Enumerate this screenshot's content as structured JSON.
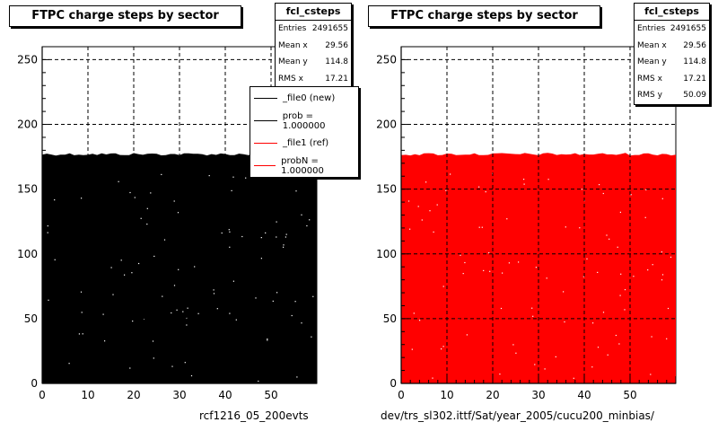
{
  "chart_data": [
    {
      "type": "scatter",
      "title": "FTPC charge steps by sector",
      "xlim": [
        0,
        60
      ],
      "ylim": [
        0,
        260
      ],
      "x_ticks": [
        0,
        10,
        20,
        30,
        40,
        50
      ],
      "y_ticks": [
        0,
        50,
        100,
        150,
        200,
        250
      ],
      "grid": true,
      "fill_region": {
        "x": [
          0,
          60
        ],
        "y": [
          0,
          177
        ]
      },
      "series": [
        {
          "name": "_file0 (new)",
          "color": "#000000",
          "x_range": [
            0,
            60
          ],
          "y_max": 177
        },
        {
          "name": "_file1 (ref)",
          "color": "#ff0000",
          "x_range": [
            0,
            60
          ],
          "y_max": 177
        }
      ],
      "stats": {
        "name": "fcl_csteps",
        "entries": "2491655",
        "mean_x": "29.56",
        "mean_y": "114.8",
        "rms_x": "17.21"
      },
      "legend": {
        "placement": "top-right",
        "items": [
          {
            "label": "_file0 (new)",
            "color": "#000000"
          },
          {
            "label": "prob = 1.000000",
            "color": "#000000"
          },
          {
            "label": "_file1 (ref)",
            "color": "#ff0000"
          },
          {
            "label": "probN = 1.000000",
            "color": "#ff0000"
          }
        ]
      },
      "footer": "rcf1216_05_200evts"
    },
    {
      "type": "scatter",
      "title": "FTPC charge steps by sector",
      "xlim": [
        0,
        60
      ],
      "ylim": [
        0,
        260
      ],
      "x_ticks": [
        0,
        10,
        20,
        30,
        40,
        50
      ],
      "y_ticks": [
        0,
        50,
        100,
        150,
        200,
        250
      ],
      "grid": true,
      "fill_region": {
        "x": [
          0,
          60
        ],
        "y": [
          0,
          177
        ]
      },
      "series": [
        {
          "name": "",
          "color": "#ff0000",
          "x_range": [
            0,
            60
          ],
          "y_max": 177
        }
      ],
      "stats": {
        "name": "fcl_csteps",
        "entries": "2491655",
        "mean_x": "29.56",
        "mean_y": "114.8",
        "rms_x": "17.21",
        "rms_y": "50.09"
      },
      "footer": "dev/trs_sl302.ittf/Sat/year_2005/cucu200_minbias/"
    }
  ],
  "stat_labels": {
    "entries": "Entries",
    "mean_x": "Mean x",
    "mean_y": "Mean y",
    "rms_x": "RMS x",
    "rms_y": "RMS y"
  },
  "colors": {
    "fill_left": "#000000",
    "fill_right": "#ff0000",
    "speckle": "#ffffff"
  }
}
